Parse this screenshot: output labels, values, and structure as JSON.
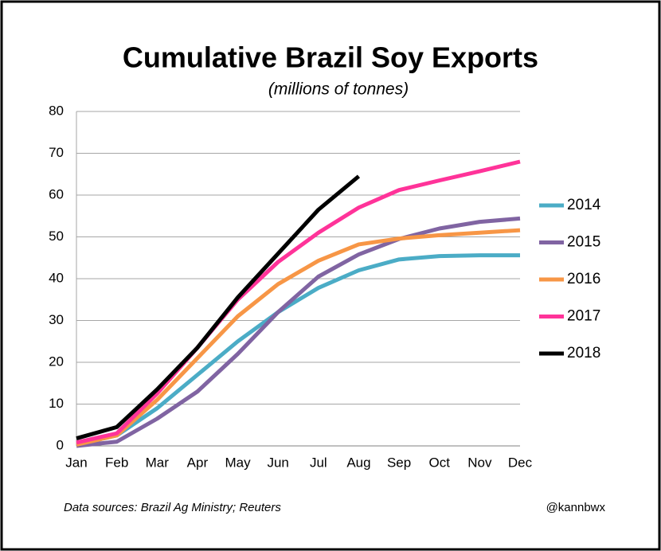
{
  "chart_data": {
    "type": "line",
    "title": "Cumulative Brazil Soy Exports",
    "subtitle": "(millions of tonnes)",
    "source": "Data sources: Brazil Ag Ministry; Reuters",
    "credit": "@kannbwx",
    "categories": [
      "Jan",
      "Feb",
      "Mar",
      "Apr",
      "May",
      "Jun",
      "Jul",
      "Aug",
      "Sep",
      "Oct",
      "Nov",
      "Dec"
    ],
    "series": [
      {
        "name": "2014",
        "color": "#4bacc6",
        "values": [
          0.3,
          2.5,
          9,
          17,
          25,
          32,
          37.8,
          42,
          44.6,
          45.4,
          45.6,
          45.6
        ]
      },
      {
        "name": "2015",
        "color": "#8064a2",
        "values": [
          0,
          1,
          6.5,
          13,
          22,
          32,
          40.5,
          45.8,
          49.5,
          52,
          53.6,
          54.4
        ]
      },
      {
        "name": "2016",
        "color": "#f79646",
        "values": [
          0.3,
          2.5,
          11,
          21,
          31,
          38.7,
          44.3,
          48.2,
          49.6,
          50.4,
          51,
          51.6
        ]
      },
      {
        "name": "2017",
        "color": "#ff3399",
        "values": [
          0.8,
          3,
          12.5,
          23.5,
          35,
          44,
          51,
          57,
          61.2,
          63.5,
          65.7,
          68
        ]
      },
      {
        "name": "2018",
        "color": "#000000",
        "values": [
          1.8,
          4.5,
          13.5,
          23.5,
          35.5,
          46,
          56.5,
          64.5,
          null,
          null,
          null,
          null
        ]
      }
    ],
    "ylim": [
      0,
      80
    ],
    "yticks": [
      0,
      10,
      20,
      30,
      40,
      50,
      60,
      70,
      80
    ],
    "grid": true,
    "legend": "right"
  }
}
